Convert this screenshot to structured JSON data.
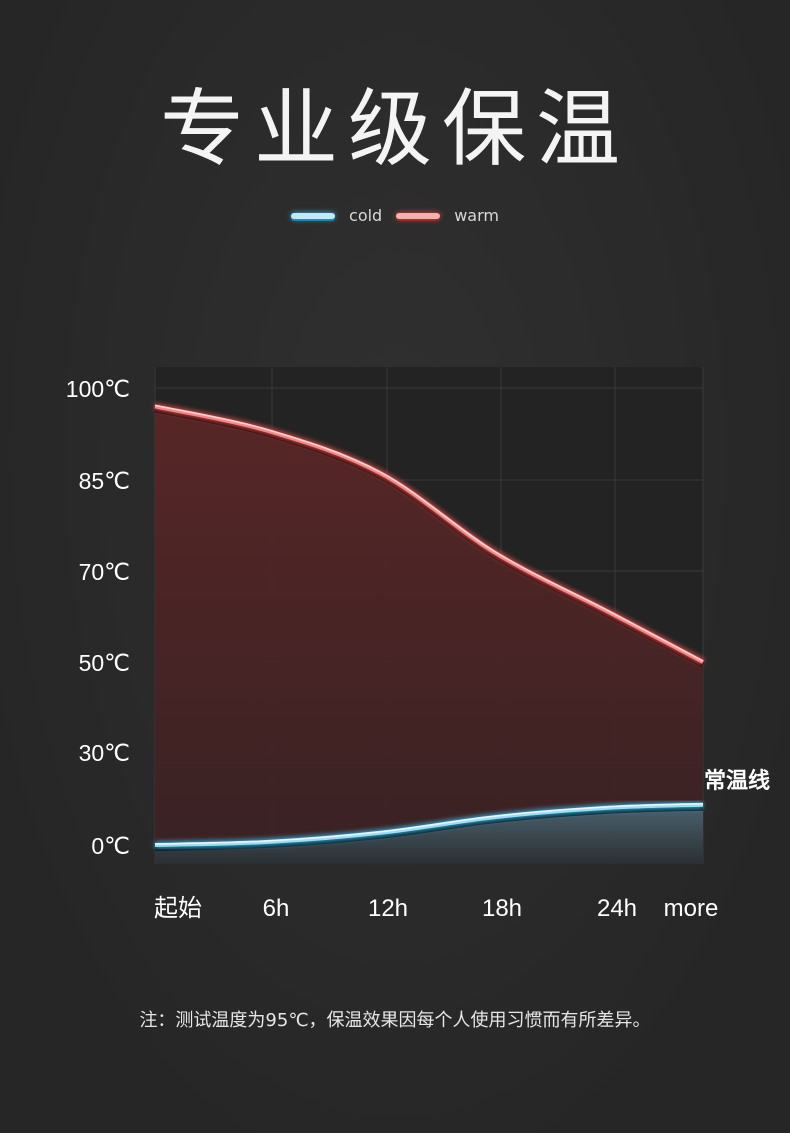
{
  "title": "专业级保温",
  "legend": {
    "cold": "cold",
    "warm": "warm"
  },
  "baseline_label": "常温线",
  "note": "注：测试温度为95℃，保温效果因每个人使用习惯而有所差异。",
  "colors": {
    "cold": "#9fdcf2",
    "warm": "#f08a8a",
    "background": "#2a2a2a"
  },
  "chart_data": {
    "type": "area",
    "y_ticks": [
      "100℃",
      "85℃",
      "70℃",
      "50℃",
      "30℃",
      "0℃"
    ],
    "y_tick_values": [
      100,
      85,
      70,
      50,
      30,
      0
    ],
    "x_ticks": [
      "起始",
      "6h",
      "12h",
      "18h",
      "24h",
      "more"
    ],
    "x_tick_values": [
      0,
      6,
      12,
      18,
      24,
      29
    ],
    "baseline": 25,
    "series": [
      {
        "name": "warm",
        "x": [
          0,
          6,
          12,
          18,
          24,
          29
        ],
        "values": [
          97,
          93,
          86,
          73,
          61,
          50
        ]
      },
      {
        "name": "cold",
        "x": [
          0,
          6,
          12,
          18,
          24,
          29
        ],
        "values": [
          0,
          1,
          4,
          9,
          12,
          13
        ]
      }
    ],
    "grid": true
  }
}
